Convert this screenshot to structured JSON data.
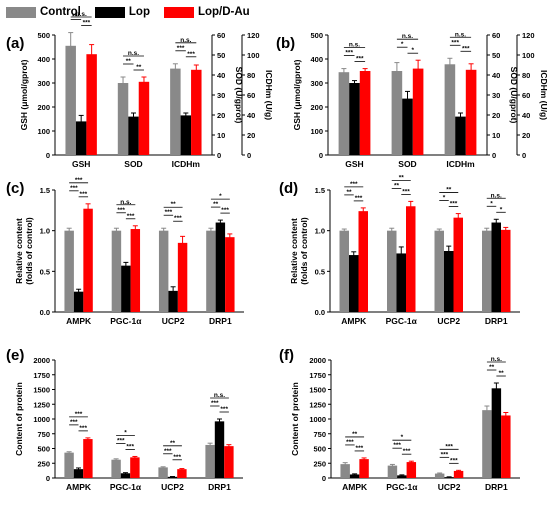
{
  "legend": [
    {
      "name": "Control",
      "color": "#898989"
    },
    {
      "name": "Lop",
      "color": "#000000"
    },
    {
      "name": "Lop/D-Au",
      "color": "#ff0000"
    }
  ],
  "chart_data": [
    {
      "type": "bar",
      "panel": "(a)",
      "categories": [
        "GSH",
        "SOD",
        "ICDHm"
      ],
      "ylabel": "GSH (μmol/gprot)",
      "ylim": [
        0,
        500
      ],
      "yticks": [
        "0",
        "100",
        "200",
        "300",
        "400",
        "500"
      ],
      "ylabel_right": "SOD (U/gprot)",
      "ylabel_right2": "ICDHm (U/g)",
      "right_ylim": [
        0,
        60
      ],
      "right_ticks": [
        "0",
        "10",
        "20",
        "30",
        "40",
        "50",
        "60"
      ],
      "right_ticks2": [
        "0",
        "20",
        "40",
        "60",
        "80",
        "100",
        "120"
      ],
      "series": [
        {
          "name": "Control",
          "values": [
            455,
            300,
            360
          ],
          "errors": [
            55,
            25,
            20
          ]
        },
        {
          "name": "Lop",
          "values": [
            140,
            160,
            165
          ],
          "errors": [
            25,
            15,
            10
          ]
        },
        {
          "name": "Lop/D-Au",
          "values": [
            420,
            305,
            355
          ],
          "errors": [
            40,
            20,
            20
          ]
        }
      ],
      "annotations": [
        {
          "x": 0,
          "text": [
            "n.s.",
            "***",
            "***"
          ]
        },
        {
          "x": 1,
          "text": [
            "n.s.",
            "**",
            "**"
          ]
        },
        {
          "x": 2,
          "text": [
            "n.s.",
            "***",
            "***"
          ]
        }
      ]
    },
    {
      "type": "bar",
      "panel": "(b)",
      "categories": [
        "GSH",
        "SOD",
        "ICDHm"
      ],
      "ylabel": "GSH (μmol/gprot)",
      "ylim": [
        0,
        500
      ],
      "yticks": [
        "0",
        "100",
        "200",
        "300",
        "400",
        "500"
      ],
      "ylabel_right": "SOD (U/gprot)",
      "ylabel_right2": "ICDHm (U/g)",
      "right_ylim": [
        0,
        60
      ],
      "right_ticks": [
        "0",
        "10",
        "20",
        "30",
        "40",
        "50",
        "60"
      ],
      "right_ticks2": [
        "0",
        "20",
        "40",
        "60",
        "80",
        "100",
        "120"
      ],
      "series": [
        {
          "name": "Control",
          "values": [
            345,
            350,
            378
          ],
          "errors": [
            15,
            35,
            25
          ]
        },
        {
          "name": "Lop",
          "values": [
            300,
            235,
            160
          ],
          "errors": [
            10,
            30,
            15
          ]
        },
        {
          "name": "Lop/D-Au",
          "values": [
            350,
            360,
            355
          ],
          "errors": [
            10,
            35,
            25
          ]
        }
      ],
      "annotations": [
        {
          "x": 0,
          "text": [
            "n.s.",
            "***",
            "***"
          ]
        },
        {
          "x": 1,
          "text": [
            "n.s.",
            "*",
            "*"
          ]
        },
        {
          "x": 2,
          "text": [
            "n.s.",
            "***",
            "***"
          ]
        }
      ]
    },
    {
      "type": "bar",
      "panel": "(c)",
      "categories": [
        "AMPK",
        "PGC-1α",
        "UCP2",
        "DRP1"
      ],
      "ylabel": "Relative content",
      "ylabel2": "(folds of control)",
      "ylim": [
        0,
        1.5
      ],
      "yticks": [
        "0.0",
        "0.5",
        "1.0",
        "1.5"
      ],
      "series": [
        {
          "name": "Control",
          "values": [
            1.0,
            1.0,
            1.0,
            1.0
          ],
          "errors": [
            0.03,
            0.03,
            0.03,
            0.03
          ]
        },
        {
          "name": "Lop",
          "values": [
            0.25,
            0.57,
            0.26,
            1.1
          ],
          "errors": [
            0.03,
            0.04,
            0.05,
            0.03
          ]
        },
        {
          "name": "Lop/D-Au",
          "values": [
            1.27,
            1.02,
            0.85,
            0.92
          ],
          "errors": [
            0.06,
            0.04,
            0.08,
            0.04
          ]
        }
      ],
      "annotations": [
        {
          "x": 0,
          "text": [
            "***",
            "***",
            "***"
          ]
        },
        {
          "x": 1,
          "text": [
            "n.s.",
            "***",
            "***"
          ]
        },
        {
          "x": 2,
          "text": [
            "**",
            "***",
            "***"
          ]
        },
        {
          "x": 3,
          "text": [
            "*",
            "**",
            "***"
          ]
        }
      ]
    },
    {
      "type": "bar",
      "panel": "(d)",
      "categories": [
        "AMPK",
        "PGC-1α",
        "UCP2",
        "DRP1"
      ],
      "ylabel": "Relative content",
      "ylabel2": "(folds of control)",
      "ylim": [
        0,
        1.5
      ],
      "yticks": [
        "0.0",
        "0.5",
        "1.0",
        "1.5"
      ],
      "series": [
        {
          "name": "Control",
          "values": [
            1.0,
            1.0,
            1.0,
            1.0
          ],
          "errors": [
            0.02,
            0.03,
            0.02,
            0.03
          ]
        },
        {
          "name": "Lop",
          "values": [
            0.7,
            0.72,
            0.75,
            1.1
          ],
          "errors": [
            0.04,
            0.08,
            0.06,
            0.04
          ]
        },
        {
          "name": "Lop/D-Au",
          "values": [
            1.24,
            1.3,
            1.16,
            1.01
          ],
          "errors": [
            0.04,
            0.06,
            0.05,
            0.03
          ]
        }
      ],
      "annotations": [
        {
          "x": 0,
          "text": [
            "***",
            "**",
            "***"
          ]
        },
        {
          "x": 1,
          "text": [
            "**",
            "**",
            "***"
          ]
        },
        {
          "x": 2,
          "text": [
            "**",
            "*",
            "***"
          ]
        },
        {
          "x": 3,
          "text": [
            "n.s.",
            "*",
            "*"
          ]
        }
      ]
    },
    {
      "type": "bar",
      "panel": "(e)",
      "categories": [
        "AMPK",
        "PGC-1α",
        "UCP2",
        "DRP1"
      ],
      "ylabel": "Content of protein",
      "ylim": [
        0,
        2000
      ],
      "yticks": [
        "0",
        "250",
        "500",
        "750",
        "1000",
        "1250",
        "1500",
        "1750",
        "2000"
      ],
      "series": [
        {
          "name": "Control",
          "values": [
            430,
            310,
            180,
            560
          ],
          "errors": [
            15,
            15,
            10,
            30
          ]
        },
        {
          "name": "Lop",
          "values": [
            150,
            80,
            20,
            960
          ],
          "errors": [
            20,
            10,
            5,
            40
          ]
        },
        {
          "name": "Lop/D-Au",
          "values": [
            660,
            350,
            150,
            540
          ],
          "errors": [
            20,
            15,
            10,
            25
          ]
        }
      ],
      "annotations": [
        {
          "x": 0,
          "text": [
            "***",
            "***",
            "***"
          ]
        },
        {
          "x": 1,
          "text": [
            "*",
            "***",
            "***"
          ]
        },
        {
          "x": 2,
          "text": [
            "**",
            "***",
            "***"
          ]
        },
        {
          "x": 3,
          "text": [
            "n.s.",
            "***",
            "***"
          ]
        }
      ]
    },
    {
      "type": "bar",
      "panel": "(f)",
      "categories": [
        "AMPK",
        "PGC-1α",
        "UCP2",
        "DRP1"
      ],
      "ylabel": "Content of protein",
      "ylim": [
        0,
        2000
      ],
      "yticks": [
        "0",
        "250",
        "500",
        "750",
        "1000",
        "1250",
        "1500",
        "1750",
        "2000"
      ],
      "series": [
        {
          "name": "Control",
          "values": [
            235,
            210,
            75,
            1150
          ],
          "errors": [
            25,
            20,
            10,
            70
          ]
        },
        {
          "name": "Lop",
          "values": [
            60,
            45,
            15,
            1520
          ],
          "errors": [
            10,
            8,
            5,
            90
          ]
        },
        {
          "name": "Lop/D-Au",
          "values": [
            320,
            270,
            120,
            1060
          ],
          "errors": [
            20,
            15,
            10,
            50
          ]
        }
      ],
      "annotations": [
        {
          "x": 0,
          "text": [
            "**",
            "***",
            "***"
          ]
        },
        {
          "x": 1,
          "text": [
            "*",
            "***",
            "***"
          ]
        },
        {
          "x": 2,
          "text": [
            "***",
            "***",
            "***"
          ]
        },
        {
          "x": 3,
          "text": [
            "n.s.",
            "**",
            "**"
          ]
        }
      ]
    }
  ]
}
